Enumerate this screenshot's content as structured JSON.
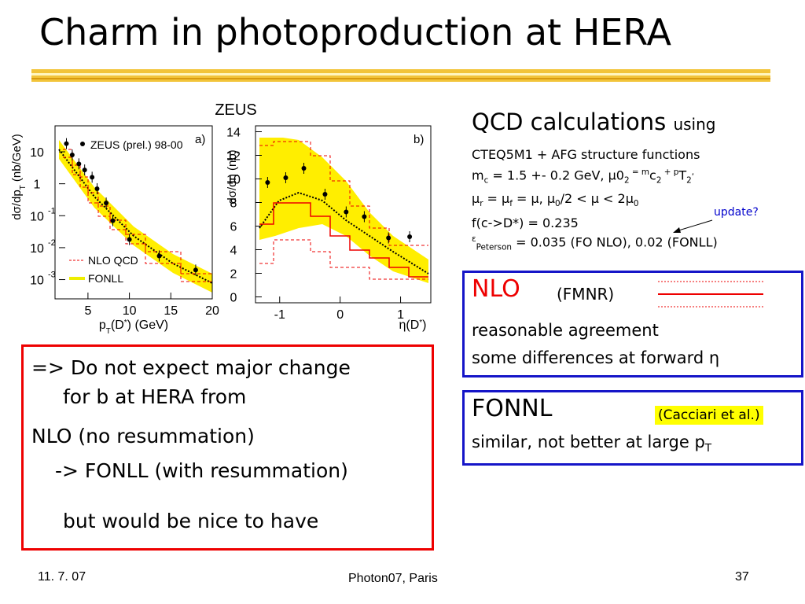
{
  "title": "Charm in photoproduction at HERA",
  "figure": {
    "experiment": "ZEUS",
    "panel_a": {
      "label": "a)",
      "legend": [
        "ZEUS (prel.) 98-00",
        "NLO QCD",
        "FONLL"
      ],
      "ylabel": [
        "dσ/dp",
        "T",
        " (nb/GeV)"
      ],
      "xlabel": [
        "p",
        "T",
        "(D",
        "*",
        ") (GeV)"
      ],
      "log_y": true,
      "xlim": [
        1.5,
        20
      ],
      "ylim": [
        0.00025,
        65
      ],
      "xticks": [
        5,
        10,
        15,
        20
      ],
      "yticks": [
        {
          "value": 10,
          "label": "10"
        },
        {
          "value": 1,
          "label": "1"
        },
        {
          "value": 0.1,
          "label": "10",
          "exponent": "-1"
        },
        {
          "value": 0.01,
          "label": "10",
          "exponent": "-2"
        },
        {
          "value": 0.001,
          "label": "10",
          "exponent": "-3"
        }
      ],
      "x": [
        2.4,
        3.1,
        3.9,
        4.6,
        5.5,
        6.1,
        7.2,
        8.0,
        10.0,
        13.6,
        18.0
      ],
      "values": [
        18,
        8,
        4.2,
        2.7,
        1.6,
        0.7,
        0.25,
        0.07,
        0.018,
        0.0055,
        0.002
      ]
    },
    "panel_b": {
      "label": "b)",
      "ylabel": "dσ/dη (nb)",
      "xlabel": [
        "η(D",
        "*",
        ")"
      ],
      "xlim": [
        -1.4,
        1.5
      ],
      "ylim": [
        -0.5,
        14.5
      ],
      "xticks": [
        -1,
        0,
        1
      ],
      "yticks": [
        0,
        2,
        4,
        6,
        8,
        10,
        12,
        14
      ],
      "x": [
        -1.2,
        -0.9,
        -0.6,
        -0.25,
        0.1,
        0.4,
        0.8,
        1.15
      ],
      "values": [
        9.7,
        10.1,
        10.9,
        8.7,
        7.2,
        6.8,
        5.0,
        5.1
      ]
    }
  },
  "qcd": {
    "heading": "QCD calculations",
    "heading_small": "using",
    "line1": "CTEQ5M1 + AFG structure functions",
    "line2": [
      "m",
      "c",
      " = 1.5 +- 0.2 GeV,     μ",
      "0",
      "2",
      " = m",
      "c",
      "2",
      " + p",
      "T",
      "2",
      ","
    ],
    "line3": [
      "μ",
      "r",
      " = μ",
      "f",
      " = μ,        μ",
      "0",
      "/2 < μ < 2μ",
      "0"
    ],
    "line4": "f(c->D*) = 0.235",
    "line5": [
      "ε",
      "Peterson",
      " = 0.035 (FO NLO),  0.02 (FONLL)"
    ],
    "note": "update?"
  },
  "nlo_box": {
    "name": "NLO",
    "ref": "(FMNR)",
    "lines": [
      "reasonable agreement",
      "some differences at forward η"
    ]
  },
  "fonnl_box": {
    "name": "FONNL",
    "ref": "(Cacciari et al.)",
    "line": [
      "similar, not better at large p",
      "T"
    ]
  },
  "conclusion": {
    "lines": [
      "=> Do not expect major change",
      "for b at HERA from",
      "NLO (no resummation)",
      "-> FONLL (with resummation)",
      "but would be nice to have"
    ]
  },
  "footer": {
    "date": "11. 7. 07",
    "venue": "Photon07, Paris",
    "page": "37"
  }
}
